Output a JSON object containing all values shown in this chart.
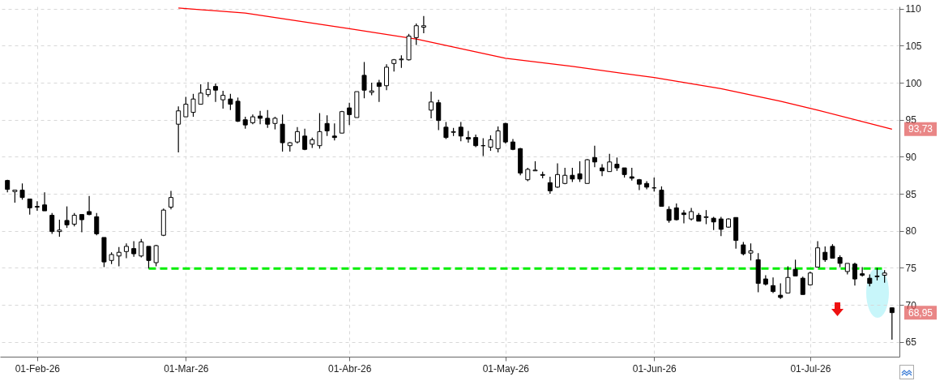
{
  "chart_data": {
    "type": "candlestick",
    "color": "#000000",
    "grid": true,
    "categories": [
      null,
      null,
      null,
      null,
      "01-Feb-26",
      null,
      null,
      null,
      null,
      null,
      null,
      null,
      null,
      null,
      null,
      null,
      null,
      null,
      null,
      null,
      null,
      null,
      null,
      null,
      "01-Mar-26",
      null,
      null,
      null,
      null,
      null,
      null,
      null,
      null,
      null,
      null,
      null,
      null,
      null,
      null,
      null,
      null,
      null,
      null,
      null,
      null,
      null,
      "01-Abr-26",
      null,
      null,
      null,
      null,
      null,
      null,
      null,
      null,
      null,
      null,
      null,
      null,
      null,
      null,
      null,
      null,
      null,
      null,
      null,
      null,
      "01-May-26",
      null,
      null,
      null,
      null,
      null,
      null,
      null,
      null,
      null,
      null,
      null,
      null,
      null,
      null,
      null,
      null,
      null,
      null,
      null,
      "01-Jun-26",
      null,
      null,
      null,
      null,
      null,
      null,
      null,
      null,
      null,
      null,
      null,
      null,
      null,
      null,
      null,
      null,
      null,
      null,
      null,
      null,
      "01-Jul-26",
      null,
      null,
      null,
      null,
      null,
      null,
      null,
      null,
      null,
      null,
      null
    ],
    "ohlc": [
      [
        86.8,
        86.9,
        85.2,
        85.6
      ],
      [
        85.3,
        85.5,
        83.8,
        85.5
      ],
      [
        85.5,
        86.4,
        84.2,
        84.5
      ],
      [
        84.3,
        84.3,
        82.2,
        83.1
      ],
      [
        83.2,
        84.0,
        82.7,
        83.3
      ],
      [
        83.5,
        85.2,
        82.7,
        82.7
      ],
      [
        82.1,
        82.4,
        79.6,
        79.9
      ],
      [
        79.9,
        81.5,
        79.2,
        80.1
      ],
      [
        81.4,
        83.3,
        80.4,
        80.8
      ],
      [
        80.9,
        82.4,
        80.6,
        82.1
      ],
      [
        82.2,
        82.2,
        79.8,
        81.5
      ],
      [
        82.6,
        84.7,
        82.1,
        82.2
      ],
      [
        81.9,
        82.4,
        79.4,
        79.6
      ],
      [
        79.1,
        79.1,
        75.1,
        75.8
      ],
      [
        76.0,
        77.1,
        75.5,
        76.8
      ],
      [
        76.6,
        77.8,
        75.2,
        77.1
      ],
      [
        77.2,
        78.3,
        76.3,
        77.9
      ],
      [
        77.6,
        78.6,
        76.5,
        76.9
      ],
      [
        76.6,
        78.9,
        76.4,
        78.5
      ],
      [
        77.9,
        77.9,
        74.9,
        76.0
      ],
      [
        75.7,
        78.1,
        75.2,
        78.0
      ],
      [
        79.4,
        83.0,
        79.3,
        82.8
      ],
      [
        83.2,
        85.4,
        82.9,
        84.5
      ],
      [
        94.4,
        96.8,
        90.6,
        96.2
      ],
      [
        95.4,
        98.1,
        95.4,
        97.1
      ],
      [
        96.0,
        98.5,
        95.4,
        97.8
      ],
      [
        97.1,
        99.8,
        97.1,
        98.6
      ],
      [
        98.4,
        100.1,
        98.1,
        99.1
      ],
      [
        99.5,
        99.9,
        97.4,
        99.0
      ],
      [
        97.7,
        98.9,
        96.5,
        98.3
      ],
      [
        97.8,
        98.5,
        96.3,
        97.1
      ],
      [
        97.5,
        98.0,
        94.7,
        94.8
      ],
      [
        95.0,
        95.4,
        93.8,
        94.3
      ],
      [
        94.6,
        95.7,
        94.4,
        95.4
      ],
      [
        95.5,
        96.2,
        94.4,
        95.2
      ],
      [
        95.2,
        96.3,
        93.9,
        94.4
      ],
      [
        94.5,
        95.4,
        93.7,
        95.2
      ],
      [
        94.4,
        95.7,
        90.7,
        91.9
      ],
      [
        91.5,
        92.0,
        90.7,
        91.9
      ],
      [
        92.0,
        94.0,
        91.8,
        93.4
      ],
      [
        92.8,
        93.8,
        90.9,
        91.0
      ],
      [
        91.7,
        92.6,
        91.2,
        92.3
      ],
      [
        91.5,
        95.9,
        91.1,
        93.4
      ],
      [
        94.5,
        95.6,
        92.8,
        93.5
      ],
      [
        92.8,
        94.5,
        92.2,
        92.6
      ],
      [
        93.2,
        96.2,
        93.2,
        96.1
      ],
      [
        96.6,
        97.3,
        94.3,
        95.7
      ],
      [
        95.3,
        98.8,
        95.3,
        98.8
      ],
      [
        101.0,
        102.8,
        97.9,
        99.0
      ],
      [
        98.7,
        100.0,
        98.3,
        98.9
      ],
      [
        100.0,
        100.4,
        97.4,
        99.5
      ],
      [
        99.6,
        102.5,
        99.0,
        102.1
      ],
      [
        102.6,
        103.2,
        101.5,
        103.1
      ],
      [
        103.1,
        103.7,
        102.0,
        103.2
      ],
      [
        103.1,
        106.6,
        103.0,
        106.3
      ],
      [
        106.1,
        108.0,
        105.1,
        107.7
      ],
      [
        107.5,
        109.0,
        106.7,
        107.7
      ],
      [
        96.3,
        98.8,
        95.2,
        97.4
      ],
      [
        97.3,
        97.7,
        93.6,
        94.9
      ],
      [
        94.0,
        94.7,
        92.4,
        92.6
      ],
      [
        93.3,
        93.9,
        92.8,
        93.4
      ],
      [
        94.0,
        94.7,
        92.1,
        92.8
      ],
      [
        92.6,
        93.5,
        91.9,
        92.4
      ],
      [
        92.6,
        93.0,
        91.3,
        91.5
      ],
      [
        91.5,
        92.5,
        90.1,
        91.5
      ],
      [
        91.3,
        92.9,
        90.8,
        92.3
      ],
      [
        91.1,
        94.1,
        90.6,
        93.5
      ],
      [
        94.5,
        94.6,
        91.8,
        92.0
      ],
      [
        92.0,
        92.4,
        90.9,
        91.0
      ],
      [
        91.1,
        91.2,
        87.5,
        87.8
      ],
      [
        86.9,
        88.5,
        86.7,
        88.3
      ],
      [
        88.1,
        89.4,
        88.1,
        88.2
      ],
      [
        87.6,
        88.0,
        87.1,
        87.5
      ],
      [
        86.5,
        87.3,
        85.0,
        85.4
      ],
      [
        85.9,
        89.1,
        85.8,
        87.6
      ],
      [
        86.4,
        88.5,
        86.3,
        87.5
      ],
      [
        87.5,
        88.5,
        86.6,
        87.0
      ],
      [
        87.7,
        89.4,
        86.6,
        87.0
      ],
      [
        86.4,
        89.7,
        86.4,
        89.6
      ],
      [
        89.9,
        91.5,
        88.6,
        89.3
      ],
      [
        88.5,
        89.0,
        87.4,
        88.1
      ],
      [
        88.0,
        90.4,
        88.0,
        89.3
      ],
      [
        89.0,
        89.9,
        88.1,
        88.5
      ],
      [
        88.5,
        88.5,
        87.2,
        87.6
      ],
      [
        87.3,
        88.5,
        86.8,
        87.1
      ],
      [
        86.9,
        87.0,
        85.5,
        86.3
      ],
      [
        86.4,
        86.7,
        85.6,
        85.9
      ],
      [
        85.8,
        87.2,
        85.3,
        85.8
      ],
      [
        85.5,
        86.0,
        83.3,
        83.3
      ],
      [
        82.9,
        83.3,
        81.1,
        81.4
      ],
      [
        83.1,
        83.7,
        81.4,
        81.5
      ],
      [
        82.4,
        82.8,
        81.0,
        82.2
      ],
      [
        81.6,
        83.1,
        81.4,
        82.6
      ],
      [
        82.1,
        82.4,
        81.3,
        81.3
      ],
      [
        81.8,
        82.8,
        80.9,
        81.9
      ],
      [
        81.7,
        81.9,
        80.1,
        81.2
      ],
      [
        81.6,
        81.9,
        79.3,
        80.2
      ],
      [
        80.5,
        81.7,
        80.4,
        81.6
      ],
      [
        81.8,
        81.8,
        77.6,
        78.7
      ],
      [
        78.1,
        78.5,
        76.7,
        76.9
      ],
      [
        77.0,
        78.3,
        76.0,
        77.3
      ],
      [
        76.1,
        77.0,
        71.7,
        72.9
      ],
      [
        73.5,
        74.0,
        72.6,
        72.8
      ],
      [
        72.6,
        73.7,
        71.6,
        71.8
      ],
      [
        71.3,
        72.9,
        70.8,
        71.0
      ],
      [
        71.6,
        75.2,
        71.6,
        73.7
      ],
      [
        74.8,
        76.1,
        73.9,
        73.9
      ],
      [
        73.6,
        73.8,
        71.4,
        71.4
      ],
      [
        72.7,
        74.5,
        72.6,
        74.3
      ],
      [
        75.1,
        78.6,
        75.1,
        77.7
      ],
      [
        77.1,
        77.9,
        75.8,
        76.1
      ],
      [
        77.9,
        78.2,
        76.3,
        76.3
      ],
      [
        76.4,
        76.7,
        75.1,
        75.6
      ],
      [
        74.5,
        75.6,
        74.1,
        75.6
      ],
      [
        75.5,
        75.7,
        72.6,
        73.5
      ],
      [
        74.2,
        75.1,
        73.8,
        74.0
      ],
      [
        73.6,
        74.1,
        72.5,
        72.9
      ],
      [
        73.8,
        75.0,
        73.3,
        73.9
      ],
      [
        74.0,
        74.7,
        73.0,
        74.3
      ],
      [
        69.6,
        69.6,
        65.3,
        68.95
      ]
    ],
    "series": [
      {
        "type": "line",
        "color": "#ff0000",
        "values": [
          null,
          null,
          null,
          null,
          null,
          null,
          null,
          null,
          null,
          null,
          null,
          null,
          null,
          null,
          null,
          null,
          null,
          null,
          null,
          null,
          null,
          null,
          null,
          110.1,
          null,
          null,
          null,
          null,
          null,
          null,
          null,
          null,
          109.4,
          null,
          null,
          null,
          null,
          null,
          null,
          null,
          null,
          null,
          null,
          null,
          null,
          null,
          107.3,
          null,
          null,
          null,
          null,
          null,
          null,
          null,
          null,
          105.9,
          null,
          null,
          null,
          null,
          null,
          null,
          null,
          null,
          null,
          null,
          null,
          103.3,
          null,
          null,
          null,
          null,
          null,
          null,
          null,
          null,
          102.2,
          null,
          null,
          null,
          null,
          null,
          null,
          null,
          null,
          null,
          null,
          100.7,
          null,
          null,
          null,
          null,
          null,
          null,
          null,
          null,
          99.2,
          null,
          null,
          null,
          null,
          null,
          null,
          null,
          97.5,
          null,
          null,
          null,
          null,
          96.3,
          null,
          null,
          null,
          null,
          null,
          null,
          null,
          null,
          null,
          93.73
        ]
      },
      {
        "type": "line",
        "color": "#00ee00",
        "line_style": "dashed",
        "values": [
          null,
          null,
          null,
          null,
          null,
          null,
          null,
          null,
          null,
          null,
          null,
          null,
          null,
          null,
          null,
          null,
          null,
          null,
          null,
          74.9,
          null,
          null,
          null,
          null,
          null,
          null,
          null,
          null,
          null,
          null,
          null,
          null,
          null,
          null,
          null,
          null,
          null,
          null,
          null,
          null,
          null,
          null,
          null,
          null,
          null,
          null,
          null,
          null,
          null,
          null,
          null,
          null,
          null,
          null,
          null,
          null,
          null,
          null,
          null,
          null,
          null,
          null,
          null,
          null,
          null,
          null,
          null,
          null,
          null,
          null,
          null,
          null,
          null,
          null,
          null,
          null,
          null,
          null,
          null,
          null,
          null,
          null,
          null,
          null,
          null,
          null,
          null,
          null,
          null,
          null,
          null,
          null,
          null,
          null,
          null,
          null,
          null,
          null,
          null,
          null,
          null,
          null,
          null,
          null,
          null,
          null,
          null,
          null,
          null,
          null,
          null,
          null,
          null,
          null,
          null,
          null,
          null,
          null,
          74.9,
          null
        ]
      }
    ],
    "ylim": [
      63,
      110.3
    ],
    "yticks": [
      65,
      70,
      75,
      80,
      85,
      90,
      95,
      100,
      105,
      110
    ],
    "annotations": [
      "93,73",
      "68,95"
    ]
  }
}
